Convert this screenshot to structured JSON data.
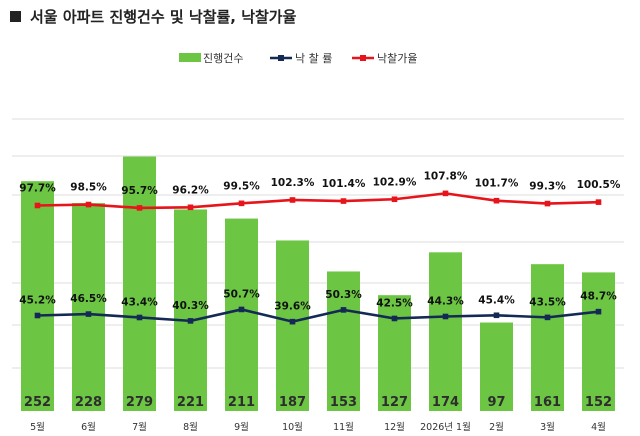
{
  "chart_data": {
    "type": "bar",
    "title": "서울 아파트 진행건수 및 낙찰률, 낙찰가율",
    "categories": [
      "5월",
      "6월",
      "7월",
      "8월",
      "9월",
      "10월",
      "11월",
      "12월",
      "2026년 1월",
      "2월",
      "3월",
      "4월"
    ],
    "legend_position": "top",
    "grid": true,
    "series": [
      {
        "name": "진행건수",
        "type": "bar",
        "color": "#6cc644",
        "values": [
          252,
          228,
          279,
          221,
          211,
          187,
          153,
          127,
          174,
          97,
          161,
          152
        ],
        "labels": [
          "252",
          "228",
          "279",
          "221",
          "211",
          "187",
          "153",
          "127",
          "174",
          "97",
          "161",
          "152"
        ]
      },
      {
        "name": "낙 찰 률",
        "type": "line",
        "color": "#142a55",
        "values": [
          45.2,
          46.5,
          43.4,
          40.3,
          50.7,
          39.6,
          50.3,
          42.5,
          44.3,
          45.4,
          43.5,
          48.7
        ],
        "labels": [
          "45.2%",
          "46.5%",
          "43.4%",
          "40.3%",
          "50.7%",
          "39.6%",
          "50.3%",
          "42.5%",
          "44.3%",
          "45.4%",
          "43.5%",
          "48.7%"
        ]
      },
      {
        "name": "낙찰가율",
        "type": "line",
        "color": "#e8141b",
        "values": [
          97.7,
          98.5,
          95.7,
          96.2,
          99.5,
          102.3,
          101.4,
          102.9,
          107.8,
          101.7,
          99.3,
          100.5
        ],
        "labels": [
          "97.7%",
          "98.5%",
          "95.7%",
          "96.2%",
          "99.5%",
          "102.3%",
          "101.4%",
          "102.9%",
          "107.8%",
          "101.7%",
          "99.3%",
          "100.5%"
        ]
      }
    ]
  }
}
